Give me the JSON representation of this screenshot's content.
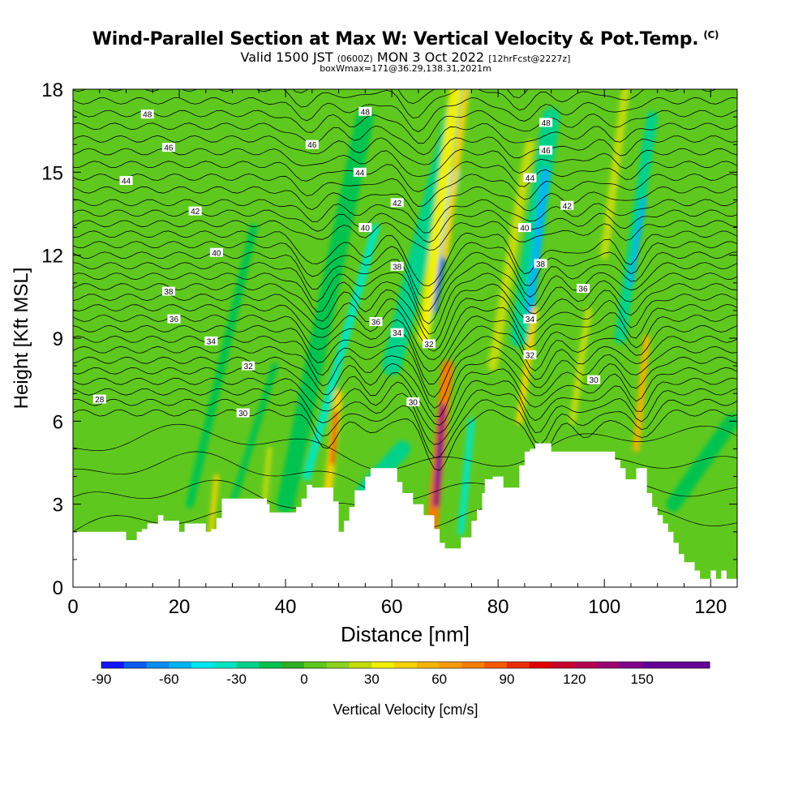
{
  "header": {
    "title": "Wind-Parallel Section at Max W: Vertical Velocity & Pot.Temp.",
    "copyright": "(C)",
    "valid_prefix": "Valid 1500 JST",
    "valid_z": "(0600Z)",
    "valid_date": "MON 3 Oct 2022",
    "fcst": "[12hrFcst@2227z]",
    "box_info": "boxWmax=171@36.29,138.31,2021m"
  },
  "colors": {
    "color_scale": [
      "#1414ff",
      "#0a5af0",
      "#0a8cf0",
      "#00b4f5",
      "#00e6f0",
      "#00e6c3",
      "#00d28c",
      "#00c350",
      "#2daf23",
      "#5fc81e",
      "#8cd21e",
      "#c3dc0a",
      "#f0f000",
      "#f5d200",
      "#f5b400",
      "#f59b00",
      "#f57d00",
      "#f55a00",
      "#eb2d00",
      "#e10000",
      "#c8002d",
      "#b40050",
      "#9b0073",
      "#82008c",
      "#640096"
    ],
    "terrain": "#ffffff"
  },
  "chart_data": {
    "type": "heatmap",
    "xlabel": "Distance [nm]",
    "ylabel": "Height [Kft MSL]",
    "xlim": [
      0,
      125
    ],
    "ylim": [
      0,
      18
    ],
    "xticks": [
      "0",
      "20",
      "40",
      "60",
      "80",
      "100",
      "120"
    ],
    "yticks": [
      "0",
      "3",
      "6",
      "9",
      "12",
      "15",
      "18"
    ],
    "colorbar": {
      "label": "Vertical Velocity [cm/s]",
      "min": -90,
      "max": 171,
      "step": 10,
      "tick_labels": [
        "-90",
        "-60",
        "-30",
        "0",
        "30",
        "60",
        "90",
        "120",
        "150"
      ]
    },
    "terrain_profile": {
      "x": [
        0,
        9,
        10,
        12,
        13,
        14,
        16,
        17,
        20,
        21,
        24,
        25,
        26,
        27,
        28,
        36,
        36.5,
        37,
        41,
        42,
        43,
        44,
        45,
        48,
        49,
        50,
        51,
        52,
        53,
        55,
        56,
        59,
        61,
        62,
        64,
        66,
        68,
        69,
        70,
        72,
        73,
        75,
        76,
        77,
        77.5,
        78,
        79,
        80,
        81,
        83,
        84,
        85,
        86,
        87,
        88,
        90,
        91,
        101,
        102,
        103,
        104,
        106,
        107,
        108,
        109,
        110,
        111,
        112,
        113,
        114,
        115,
        117,
        118,
        120,
        121,
        122,
        123,
        125
      ],
      "y": [
        2.0,
        2.0,
        1.7,
        2.0,
        2.1,
        2.3,
        2.6,
        2.4,
        2.0,
        2.3,
        2.3,
        2.0,
        2.1,
        2.5,
        3.2,
        3.2,
        3.0,
        2.7,
        2.7,
        2.9,
        3.2,
        3.7,
        3.6,
        3.6,
        3.1,
        2.0,
        2.4,
        2.9,
        3.5,
        4.0,
        4.3,
        4.3,
        3.8,
        3.4,
        3.0,
        2.6,
        2.1,
        1.6,
        1.4,
        1.4,
        1.8,
        2.4,
        2.8,
        3.4,
        3.9,
        3.9,
        4.0,
        4.0,
        3.6,
        3.6,
        4.4,
        4.9,
        5.0,
        5.2,
        5.2,
        4.9,
        4.9,
        4.9,
        4.6,
        4.3,
        3.9,
        4.3,
        4.3,
        3.4,
        2.9,
        2.6,
        2.3,
        2.0,
        1.6,
        1.2,
        0.9,
        0.6,
        0.3,
        0.6,
        0.3,
        0.6,
        0.3,
        0.3
      ]
    },
    "updraft_cores": [
      {
        "x": 49,
        "y": 5.5,
        "w_max": 90
      },
      {
        "x": 69,
        "y": 4.5,
        "w_max": 171
      },
      {
        "x": 107,
        "y": 6.0,
        "w_max": 60
      }
    ],
    "downdraft_cores": [
      {
        "x": 70,
        "y": 12.5,
        "w_min": -75
      },
      {
        "x": 88,
        "y": 13.5,
        "w_min": -65
      },
      {
        "x": 107,
        "y": 12.5,
        "w_min": -55
      }
    ],
    "theta_contour_labels": [
      {
        "text": "48",
        "x": 14,
        "y": 17.1
      },
      {
        "text": "46",
        "x": 18,
        "y": 15.9
      },
      {
        "text": "44",
        "x": 10,
        "y": 14.7
      },
      {
        "text": "48",
        "x": 55,
        "y": 17.2
      },
      {
        "text": "46",
        "x": 45,
        "y": 16.0
      },
      {
        "text": "44",
        "x": 54,
        "y": 15.0
      },
      {
        "text": "42",
        "x": 61,
        "y": 13.9
      },
      {
        "text": "40",
        "x": 55,
        "y": 13.0
      },
      {
        "text": "38",
        "x": 61,
        "y": 11.6
      },
      {
        "text": "42",
        "x": 23,
        "y": 13.6
      },
      {
        "text": "40",
        "x": 27,
        "y": 12.1
      },
      {
        "text": "38",
        "x": 18,
        "y": 10.7
      },
      {
        "text": "36",
        "x": 19,
        "y": 9.7
      },
      {
        "text": "34",
        "x": 26,
        "y": 8.9
      },
      {
        "text": "32",
        "x": 33,
        "y": 8.0
      },
      {
        "text": "30",
        "x": 32,
        "y": 6.3
      },
      {
        "text": "28",
        "x": 5,
        "y": 6.8
      },
      {
        "text": "36",
        "x": 57,
        "y": 9.6
      },
      {
        "text": "34",
        "x": 61,
        "y": 9.2
      },
      {
        "text": "32",
        "x": 67,
        "y": 8.8
      },
      {
        "text": "30",
        "x": 64,
        "y": 6.7
      },
      {
        "text": "48",
        "x": 89,
        "y": 16.8
      },
      {
        "text": "46",
        "x": 89,
        "y": 15.8
      },
      {
        "text": "44",
        "x": 86,
        "y": 14.8
      },
      {
        "text": "42",
        "x": 93,
        "y": 13.8
      },
      {
        "text": "40",
        "x": 85,
        "y": 13.0
      },
      {
        "text": "38",
        "x": 88,
        "y": 11.7
      },
      {
        "text": "36",
        "x": 96,
        "y": 10.8
      },
      {
        "text": "34",
        "x": 86,
        "y": 9.7
      },
      {
        "text": "32",
        "x": 86,
        "y": 8.4
      },
      {
        "text": "30",
        "x": 98,
        "y": 7.5
      }
    ]
  }
}
